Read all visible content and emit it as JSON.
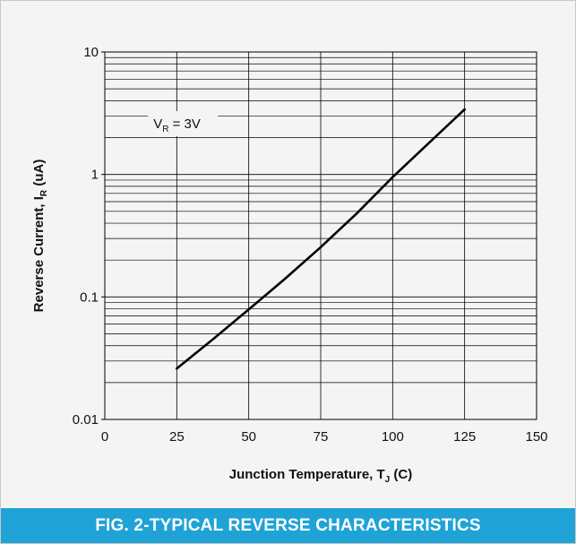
{
  "figure": {
    "caption": "FIG. 2-TYPICAL REVERSE CHARACTERISTICS",
    "caption_color": "#1fa3d6",
    "background_color": "#f4f4f4"
  },
  "chart_data": {
    "type": "line",
    "title": "",
    "xlabel": {
      "main": "Junction Temperature, T",
      "sub": "J",
      "suffix": " (C)"
    },
    "ylabel": {
      "main": "Reverse Current, I",
      "sub": "R",
      "suffix": " (uA)"
    },
    "xlim": [
      0,
      150
    ],
    "ylim": [
      0.01,
      10
    ],
    "yscale": "log",
    "grid": true,
    "x_ticks": [
      0,
      25,
      50,
      75,
      100,
      125,
      150
    ],
    "x_tick_labels": [
      "0",
      "25",
      "50",
      "75",
      "100",
      "125",
      "150"
    ],
    "y_ticks": [
      0.01,
      0.1,
      1,
      10
    ],
    "y_tick_labels": [
      "0.01",
      "0.1",
      "1",
      "10"
    ],
    "annotation": {
      "main": "V",
      "sub": "R",
      "suffix": " = 3V",
      "x": 15,
      "y": 2.6
    },
    "series": [
      {
        "line_color": "#000000",
        "x": [
          25,
          37.5,
          50,
          62.5,
          75,
          87.5,
          100,
          112.5,
          125
        ],
        "y": [
          0.026,
          0.045,
          0.079,
          0.14,
          0.255,
          0.48,
          0.95,
          1.8,
          3.4
        ]
      }
    ]
  }
}
